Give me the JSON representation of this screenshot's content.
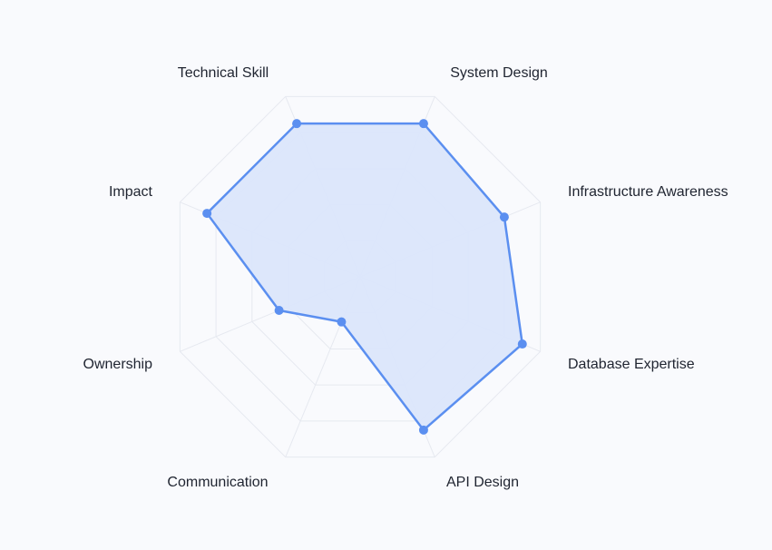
{
  "chart_data": {
    "type": "radar",
    "title": "",
    "axes": [
      "Technical Skill",
      "System Design",
      "Infrastructure Awareness",
      "Database Expertise",
      "API Design",
      "Communication",
      "Ownership",
      "Impact"
    ],
    "series": [
      {
        "values": [
          8.5,
          8.5,
          8.0,
          9.0,
          8.5,
          2.5,
          4.5,
          8.5
        ],
        "color": "#5b8ff0",
        "fill": "#dbe6fb"
      }
    ],
    "range": [
      0,
      10
    ],
    "grid_rings": 5,
    "grid_color": "#e6e9f0",
    "label_color": "#1f2430"
  }
}
